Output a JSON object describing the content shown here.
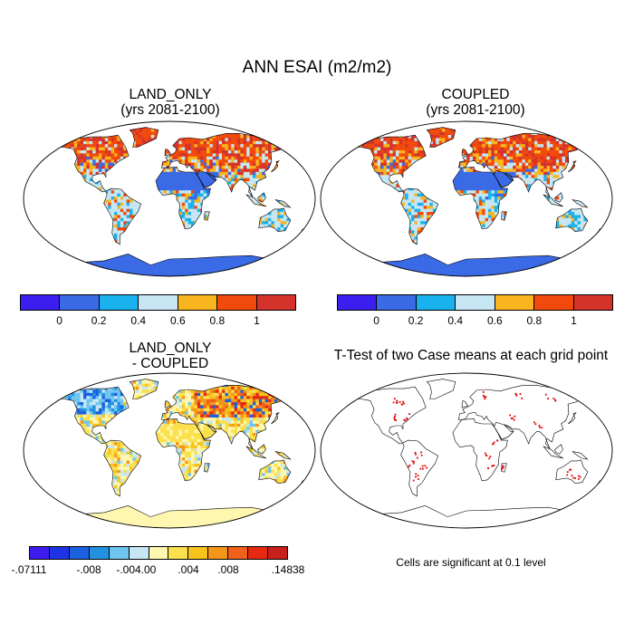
{
  "title": "ANN ESAI (m2/m2)",
  "panels": [
    {
      "title1": "LAND_ONLY",
      "title2": "(yrs 2081-2100)"
    },
    {
      "title1": "COUPLED",
      "title2": "(yrs 2081-2100)"
    },
    {
      "title1": "LAND_ONLY",
      "title2": "- COUPLED"
    },
    {
      "title1": "T-Test of two Case means at each grid point",
      "title2": ""
    }
  ],
  "colorbar_top": {
    "colors": [
      "#3c1ff0",
      "#3a6ae6",
      "#19b2ee",
      "#c6e6f4",
      "#f8b51d",
      "#f24a0d",
      "#d4332b"
    ],
    "labels": [
      "0",
      "0.2",
      "0.4",
      "0.6",
      "0.8",
      "1"
    ]
  },
  "colorbar_diff": {
    "colors": [
      "#3e1cf0",
      "#1c34e6",
      "#1b62e0",
      "#2490e0",
      "#6ec6f0",
      "#c6e6f4",
      "#fff7b0",
      "#fbe04c",
      "#f6c21c",
      "#f4961a",
      "#f0621a",
      "#e62a12",
      "#c8201a"
    ],
    "labels": [
      "-.07111",
      "-.008",
      "-.004",
      ".00",
      ".004",
      ".008",
      ".14838"
    ]
  },
  "significance_note": "Cells are significant at 0.1 level",
  "colors": {
    "antarctica_abs": "#3a6ae6",
    "antarctica_diff": "#fff7b0",
    "significant_cell": "#e60000",
    "ocean": "#ffffff"
  }
}
